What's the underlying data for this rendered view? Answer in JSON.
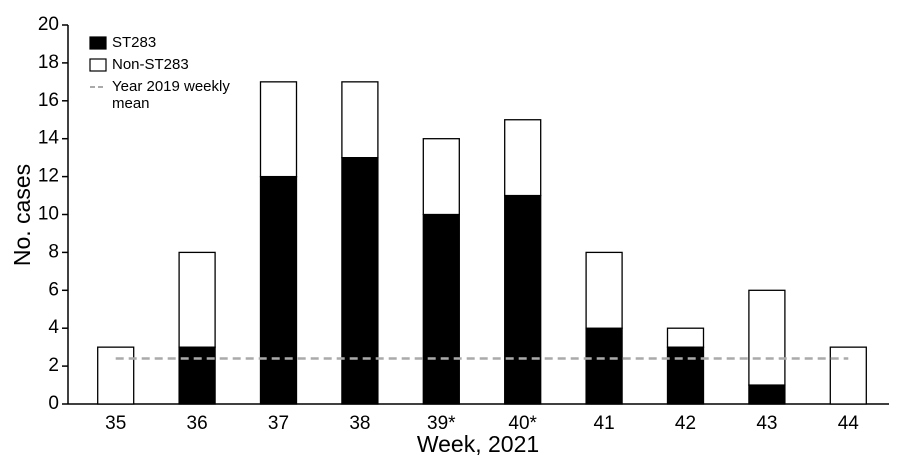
{
  "chart_data": {
    "type": "stacked_bar",
    "x_label": "Week, 2021",
    "y_label": "No. cases",
    "categories": [
      "35",
      "36",
      "37",
      "38",
      "39*",
      "40*",
      "41",
      "42",
      "43",
      "44"
    ],
    "series": [
      {
        "name": "ST283",
        "color": "#000000",
        "values": [
          0,
          3,
          12,
          13,
          10,
          11,
          4,
          3,
          1,
          0
        ]
      },
      {
        "name": "Non-ST283",
        "color": "#ffffff",
        "values": [
          3,
          5,
          5,
          4,
          4,
          4,
          4,
          1,
          5,
          3
        ]
      }
    ],
    "reference_lines": [
      {
        "name": "Year 2019 weekly mean",
        "value": 2.4,
        "color": "#aaaaaa"
      }
    ],
    "ylim": [
      0,
      20
    ],
    "yticks": [
      0,
      2,
      4,
      6,
      8,
      10,
      12,
      14,
      16,
      18,
      20
    ],
    "grid": false,
    "legend": "upper left"
  }
}
